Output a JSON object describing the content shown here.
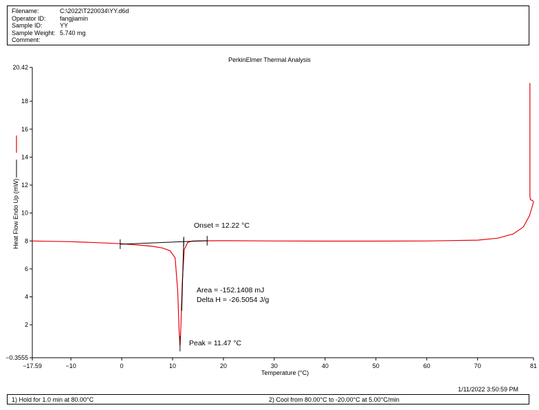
{
  "header": {
    "rows": [
      {
        "key": "Filename:",
        "value": "C:\\2022\\T220034\\YY.d6d"
      },
      {
        "key": "Operator ID:",
        "value": "fangjiamin"
      },
      {
        "key": "Sample ID:",
        "value": "YY"
      },
      {
        "key": "Sample Weight:",
        "value": "5.740 mg"
      },
      {
        "key": "Comment:",
        "value": ""
      }
    ]
  },
  "chart_data": {
    "type": "line",
    "title": "PerkinElmer Thermal Analysis",
    "xlabel": "Temperature (°C)",
    "ylabel": "Heat Flow Endo Up (mW)",
    "xlim": [
      -17.59,
      81
    ],
    "ylim": [
      -0.3555,
      20.42
    ],
    "x_ticks": [
      "−17.59",
      "−10",
      "0",
      "10",
      "20",
      "30",
      "40",
      "50",
      "60",
      "70",
      "81"
    ],
    "x_tick_values": [
      -17.59,
      -10,
      0,
      10,
      20,
      30,
      40,
      50,
      60,
      70,
      81
    ],
    "y_ticks": [
      "−0.3555",
      "2",
      "4",
      "6",
      "8",
      "10",
      "12",
      "14",
      "16",
      "18",
      "20.42"
    ],
    "y_tick_values": [
      -0.3555,
      2,
      4,
      6,
      8,
      10,
      12,
      14,
      16,
      18,
      20.42
    ],
    "grid": false,
    "series": [
      {
        "color": "#e8000b",
        "points": [
          [
            -17.59,
            8.0
          ],
          [
            -10,
            7.95
          ],
          [
            -5,
            7.88
          ],
          [
            0,
            7.8
          ],
          [
            3,
            7.72
          ],
          [
            6,
            7.62
          ],
          [
            8,
            7.5
          ],
          [
            9.5,
            7.3
          ],
          [
            10.5,
            6.8
          ],
          [
            11.0,
            4.5
          ],
          [
            11.3,
            1.5
          ],
          [
            11.47,
            0.5
          ],
          [
            11.65,
            2.0
          ],
          [
            11.9,
            5.0
          ],
          [
            12.3,
            7.4
          ],
          [
            13,
            7.9
          ],
          [
            14,
            8.0
          ],
          [
            16,
            8.01
          ],
          [
            20,
            8.02
          ],
          [
            30,
            8.0
          ],
          [
            40,
            7.99
          ],
          [
            50,
            7.99
          ],
          [
            60,
            8.0
          ],
          [
            70,
            8.06
          ],
          [
            74,
            8.2
          ],
          [
            77,
            8.5
          ],
          [
            79,
            9.0
          ],
          [
            80.2,
            9.8
          ],
          [
            80.7,
            10.4
          ],
          [
            81,
            10.8
          ],
          [
            80.8,
            10.9
          ],
          [
            80.4,
            10.95
          ],
          [
            80.3,
            11.2
          ],
          [
            80.3,
            19.3
          ]
        ]
      }
    ],
    "baseline": {
      "from": [
        -0.3,
        7.77
      ],
      "to": [
        16.8,
        8.02
      ]
    },
    "onset_tangent": {
      "from": [
        12.2,
        8.2
      ],
      "to": [
        11.8,
        3.0
      ]
    },
    "peak_marker": {
      "x": 11.47,
      "y_from": 0.1,
      "y_to": 1.2
    },
    "annotations": [
      {
        "id": "onset",
        "text": "Onset = 12.22 °C"
      },
      {
        "id": "area",
        "text": "Area = -152.1408 mJ"
      },
      {
        "id": "deltah",
        "text": "Delta H = -26.5054 J/g"
      },
      {
        "id": "peak",
        "text": "Peak = 11.47 °C"
      }
    ]
  },
  "footer": {
    "timestamp": "1/11/2022 3:50:59 PM",
    "steps": [
      "1)  Hold for 1.0 min at 80.00°C",
      "2)  Cool from 80.00°C to -20.00°C at 5.00°C/min"
    ]
  }
}
